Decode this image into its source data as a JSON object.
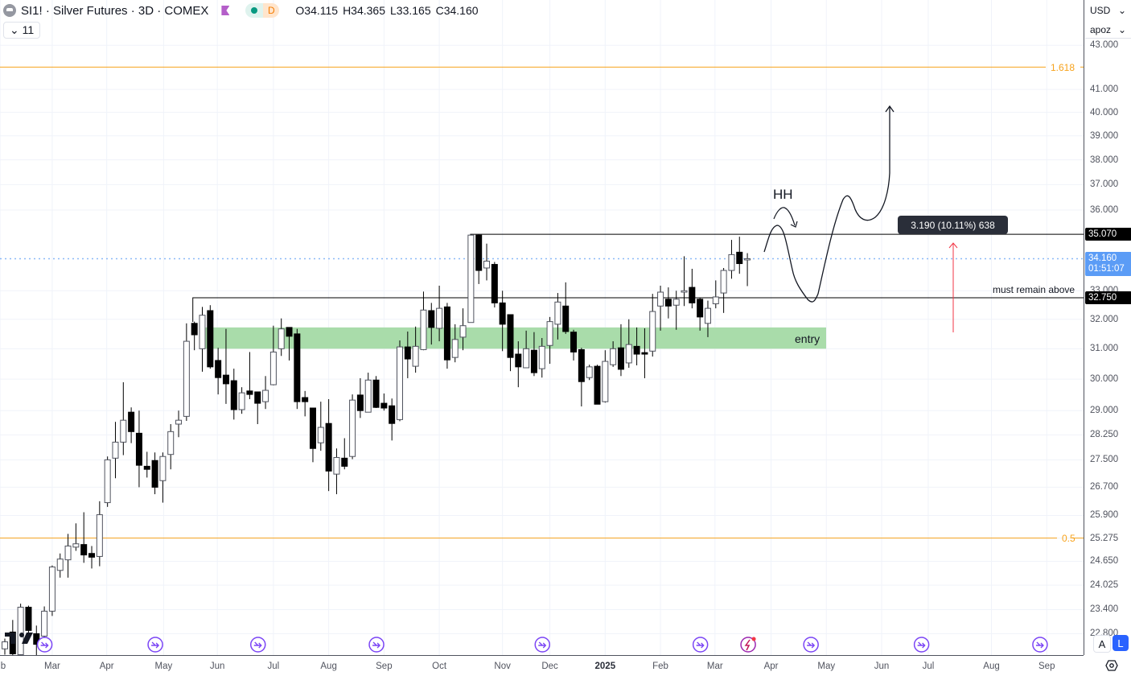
{
  "header": {
    "symbol_title": "SI1! · Silver Futures · 3D · COMEX",
    "status_badge": "D",
    "ohlc": {
      "open": "O34.115",
      "high": "H34.365",
      "low": "L33.165",
      "close": "C34.160"
    },
    "indicators_count": "11"
  },
  "price_scale": {
    "currency": "USD",
    "unit": "apoz",
    "ticks": [
      "43.000",
      "41.000",
      "40.000",
      "39.000",
      "38.000",
      "37.000",
      "36.000",
      "33.000",
      "32.000",
      "31.000",
      "30.000",
      "29.000",
      "28.250",
      "27.500",
      "26.700",
      "25.900",
      "25.275",
      "24.650",
      "24.025",
      "23.400",
      "22.800"
    ],
    "tags": {
      "level_high": "35.070",
      "last_price": "34.160",
      "countdown": "01:51:07",
      "level_support": "32.750"
    },
    "mode_buttons": [
      "A",
      "L"
    ]
  },
  "annotations": {
    "fib_1618_label": "1.618",
    "fib_05_label": "0.5",
    "hh_label": "HH",
    "must_remain_label": "must remain above",
    "entry_label": "entry",
    "measure_tooltip": "3.190 (10.11%) 638"
  },
  "colors": {
    "fib": "#f7a21b",
    "entry_zone": "#a9dcaa",
    "last_price": "#5b9cf6",
    "measure_arrow": "#f23645",
    "event_icon": "#7b45f5",
    "bear": "#000000",
    "bull_outline": "#50535e"
  },
  "chart_data": {
    "type": "candlestick",
    "title": "SI1! · Silver Futures · 3D · COMEX",
    "scale": "log",
    "ylim": [
      22.0,
      43.5
    ],
    "grid": true,
    "levels": {
      "fib_1618": 42.0,
      "fib_05": 25.275,
      "resistance": 35.07,
      "support": 32.75,
      "last": 34.16,
      "entry_zone": [
        31.0,
        31.72
      ]
    },
    "x_labels": [
      {
        "label": "b",
        "index": -0.6
      },
      {
        "label": "Mar",
        "index": 6.0
      },
      {
        "label": "Apr",
        "index": 12.9
      },
      {
        "label": "May",
        "index": 20.1
      },
      {
        "label": "Jun",
        "index": 26.9
      },
      {
        "label": "Jul",
        "index": 34.0
      },
      {
        "label": "Aug",
        "index": 41.0
      },
      {
        "label": "Sep",
        "index": 48.0
      },
      {
        "label": "Oct",
        "index": 55.0
      },
      {
        "label": "Nov",
        "index": 63.0
      },
      {
        "label": "Dec",
        "index": 69.0
      },
      {
        "label": "2025",
        "index": 76.0,
        "bold": true
      },
      {
        "label": "Feb",
        "index": 83.0
      },
      {
        "label": "Mar",
        "index": 89.9
      },
      {
        "label": "Apr",
        "index": 97.0
      },
      {
        "label": "May",
        "index": 104.0
      },
      {
        "label": "Jun",
        "index": 111.0
      },
      {
        "label": "Jul",
        "index": 116.9
      },
      {
        "label": "Aug",
        "index": 124.9
      },
      {
        "label": "Sep",
        "index": 131.9
      }
    ],
    "event_markers": [
      5,
      19,
      32,
      47,
      68,
      88,
      102,
      116,
      131
    ],
    "earnings_marker": 94,
    "candles_ohlc": [
      [
        22.43,
        22.68,
        22.29,
        22.6
      ],
      [
        22.84,
        23.14,
        21.87,
        22.31
      ],
      [
        22.29,
        23.55,
        22.16,
        23.46
      ],
      [
        23.46,
        23.5,
        22.74,
        22.88
      ],
      [
        22.8,
        23.0,
        22.25,
        22.54
      ],
      [
        22.74,
        23.48,
        22.68,
        23.36
      ],
      [
        23.36,
        24.54,
        23.24,
        24.5
      ],
      [
        24.41,
        24.86,
        24.22,
        24.71
      ],
      [
        24.69,
        25.39,
        24.22,
        25.06
      ],
      [
        25.03,
        25.68,
        24.93,
        25.12
      ],
      [
        25.1,
        25.99,
        24.61,
        24.82
      ],
      [
        24.86,
        25.06,
        24.46,
        24.76
      ],
      [
        24.78,
        26.3,
        24.52,
        25.92
      ],
      [
        26.26,
        27.6,
        26.14,
        27.5
      ],
      [
        27.55,
        28.65,
        26.96,
        28.03
      ],
      [
        28.03,
        29.9,
        27.64,
        28.7
      ],
      [
        28.95,
        29.1,
        28.0,
        28.35
      ],
      [
        28.3,
        29.0,
        26.7,
        27.34
      ],
      [
        27.31,
        27.74,
        26.98,
        27.22
      ],
      [
        27.48,
        27.72,
        26.5,
        26.7
      ],
      [
        26.89,
        27.72,
        26.26,
        27.6
      ],
      [
        27.66,
        28.58,
        27.22,
        28.35
      ],
      [
        28.58,
        29.0,
        28.18,
        28.7
      ],
      [
        28.82,
        31.86,
        28.68,
        31.25
      ],
      [
        31.86,
        31.92,
        30.95,
        31.47
      ],
      [
        31.0,
        32.43,
        30.24,
        32.14
      ],
      [
        32.3,
        32.49,
        30.34,
        30.4
      ],
      [
        30.61,
        31.03,
        29.51,
        30.05
      ],
      [
        30.13,
        31.67,
        29.21,
        29.85
      ],
      [
        29.95,
        30.34,
        28.72,
        29.03
      ],
      [
        29.03,
        29.74,
        28.9,
        29.56
      ],
      [
        29.62,
        30.89,
        29.36,
        29.51
      ],
      [
        29.59,
        29.59,
        28.58,
        29.23
      ],
      [
        29.28,
        30.1,
        29.05,
        29.64
      ],
      [
        29.82,
        31.78,
        29.8,
        30.89
      ],
      [
        31.0,
        32.03,
        30.76,
        31.67
      ],
      [
        31.72,
        31.72,
        30.61,
        31.42
      ],
      [
        31.5,
        31.67,
        29.05,
        29.28
      ],
      [
        29.41,
        29.62,
        28.82,
        29.28
      ],
      [
        29.08,
        29.08,
        27.43,
        27.84
      ],
      [
        28.01,
        29.28,
        27.77,
        28.48
      ],
      [
        28.6,
        29.36,
        26.59,
        27.17
      ],
      [
        27.08,
        27.84,
        26.5,
        27.57
      ],
      [
        27.55,
        28.15,
        27.22,
        27.31
      ],
      [
        27.6,
        29.51,
        27.52,
        29.33
      ],
      [
        29.49,
        30.03,
        28.77,
        29.0
      ],
      [
        28.95,
        30.21,
        28.95,
        29.97
      ],
      [
        29.97,
        30.1,
        29.08,
        29.1
      ],
      [
        29.23,
        29.54,
        29.0,
        29.08
      ],
      [
        29.15,
        29.38,
        28.08,
        28.6
      ],
      [
        28.72,
        31.28,
        28.67,
        31.06
      ],
      [
        31.06,
        31.58,
        30.03,
        30.66
      ],
      [
        30.42,
        31.75,
        30.21,
        31.08
      ],
      [
        30.97,
        32.97,
        30.95,
        32.32
      ],
      [
        32.3,
        32.57,
        31.14,
        31.72
      ],
      [
        31.69,
        33.18,
        31.25,
        32.38
      ],
      [
        32.43,
        32.57,
        30.34,
        30.63
      ],
      [
        30.71,
        31.83,
        30.55,
        31.31
      ],
      [
        31.39,
        32.38,
        30.95,
        31.78
      ],
      [
        31.89,
        35.07,
        31.89,
        35.04
      ],
      [
        35.04,
        35.07,
        33.24,
        33.73
      ],
      [
        33.82,
        34.72,
        33.37,
        34.07
      ],
      [
        33.95,
        34.04,
        32.41,
        32.57
      ],
      [
        32.57,
        33.0,
        30.92,
        31.83
      ],
      [
        32.16,
        32.16,
        30.26,
        30.71
      ],
      [
        30.82,
        31.25,
        29.74,
        30.4
      ],
      [
        30.37,
        31.61,
        30.37,
        31.0
      ],
      [
        30.95,
        31.56,
        30.1,
        30.21
      ],
      [
        30.34,
        31.36,
        30.05,
        31.08
      ],
      [
        31.11,
        32.08,
        30.5,
        31.92
      ],
      [
        31.83,
        32.92,
        31.31,
        32.6
      ],
      [
        32.46,
        33.3,
        31.5,
        31.58
      ],
      [
        31.56,
        31.64,
        30.61,
        30.89
      ],
      [
        30.97,
        31.03,
        29.13,
        29.92
      ],
      [
        30.05,
        30.47,
        29.97,
        30.4
      ],
      [
        30.42,
        30.47,
        29.2,
        29.2
      ],
      [
        29.28,
        30.95,
        29.25,
        30.58
      ],
      [
        30.47,
        31.25,
        30.4,
        31.0
      ],
      [
        31.03,
        31.83,
        30.1,
        30.32
      ],
      [
        30.53,
        32.0,
        30.37,
        31.14
      ],
      [
        31.08,
        31.72,
        30.45,
        30.82
      ],
      [
        30.87,
        31.69,
        30.03,
        30.82
      ],
      [
        30.92,
        32.89,
        30.74,
        32.27
      ],
      [
        32.46,
        33.18,
        31.61,
        32.95
      ],
      [
        32.7,
        33.12,
        32.03,
        32.46
      ],
      [
        32.49,
        33.0,
        31.64,
        32.7
      ],
      [
        32.95,
        34.25,
        32.46,
        33.0
      ],
      [
        33.12,
        33.79,
        32.38,
        32.57
      ],
      [
        32.7,
        32.76,
        31.61,
        32.08
      ],
      [
        31.86,
        32.65,
        31.39,
        32.38
      ],
      [
        32.54,
        33.37,
        32.38,
        32.78
      ],
      [
        32.92,
        33.82,
        32.22,
        33.73
      ],
      [
        33.73,
        34.86,
        33.43,
        34.31
      ],
      [
        34.4,
        34.98,
        33.61,
        33.98
      ],
      [
        34.115,
        34.365,
        33.165,
        34.16
      ]
    ]
  }
}
